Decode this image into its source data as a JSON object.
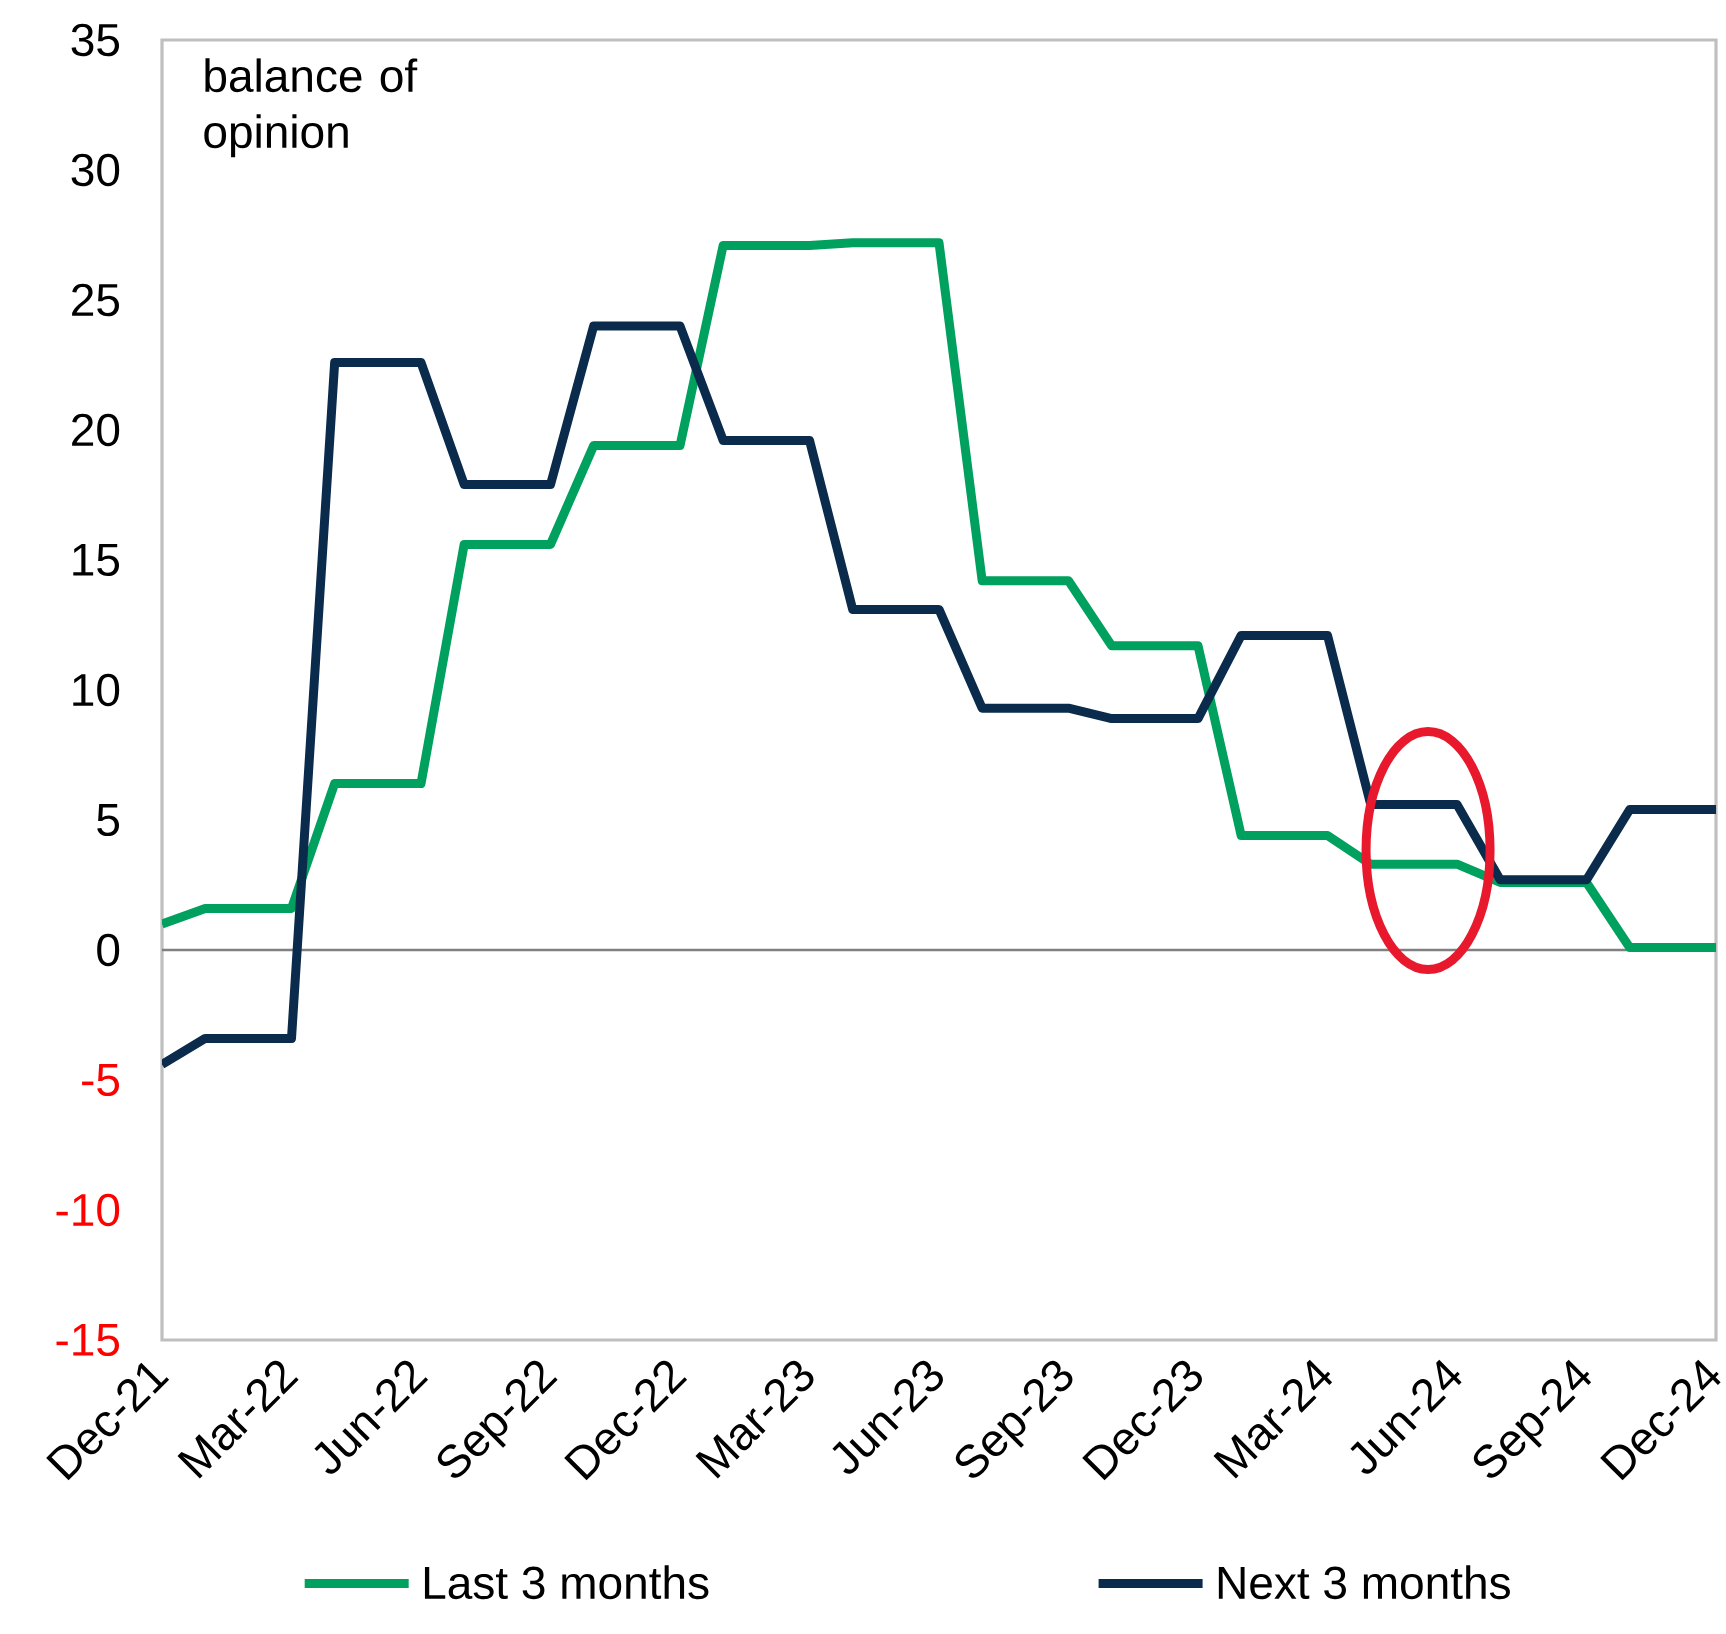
{
  "chart_data": {
    "type": "line",
    "ylabel": "balance of opinion",
    "categories": [
      "Dec-21",
      null,
      null,
      "Mar-22",
      null,
      null,
      "Jun-22",
      null,
      null,
      "Sep-22",
      null,
      null,
      "Dec-22",
      null,
      null,
      "Mar-23",
      null,
      null,
      "Jun-23",
      null,
      null,
      "Sep-23",
      null,
      null,
      "Dec-23",
      null,
      null,
      "Mar-24",
      null,
      null,
      "Jun-24",
      null,
      null,
      "Sep-24",
      null,
      null,
      "Dec-24"
    ],
    "series": [
      {
        "name": "Last 3 months",
        "color": "#00a05e",
        "values": [
          1.0,
          1.6,
          1.6,
          1.6,
          6.4,
          6.4,
          6.4,
          15.6,
          15.6,
          15.6,
          19.4,
          19.4,
          19.4,
          27.1,
          27.1,
          27.1,
          27.2,
          27.2,
          27.2,
          14.2,
          14.2,
          14.2,
          11.7,
          11.7,
          11.7,
          4.4,
          4.4,
          4.4,
          3.3,
          3.3,
          3.3,
          2.6,
          2.6,
          2.6,
          0.1,
          0.1,
          0.1
        ]
      },
      {
        "name": "Next 3 months",
        "color": "#0b2b4c",
        "values": [
          -4.4,
          -3.4,
          -3.4,
          -3.4,
          22.6,
          22.6,
          22.6,
          17.9,
          17.9,
          17.9,
          24.0,
          24.0,
          24.0,
          19.6,
          19.6,
          19.6,
          13.1,
          13.1,
          13.1,
          9.3,
          9.3,
          9.3,
          8.9,
          8.9,
          8.9,
          12.1,
          12.1,
          12.1,
          5.6,
          5.6,
          5.6,
          2.7,
          2.7,
          2.7,
          5.4,
          5.4,
          5.4
        ]
      }
    ],
    "ylim": [
      -15,
      35
    ],
    "yticks": [
      -15,
      -10,
      -5,
      0,
      5,
      10,
      15,
      20,
      25,
      30,
      35
    ],
    "ref_lines": [
      {
        "axis": "y",
        "value": 0,
        "color": "#808080"
      }
    ],
    "legend": "bottom"
  }
}
